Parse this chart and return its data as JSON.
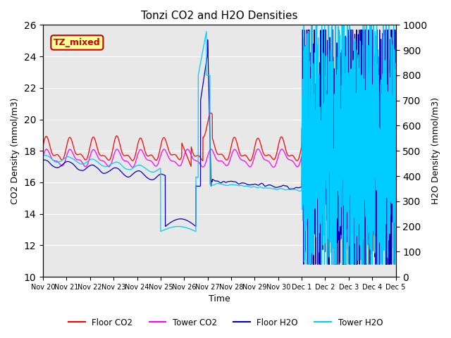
{
  "title": "Tonzi CO2 and H2O Densities",
  "xlabel": "Time",
  "ylabel_left": "CO2 Density (mmol/m3)",
  "ylabel_right": "H2O Density (mmol/m3)",
  "ylim_left": [
    10,
    26
  ],
  "ylim_right": [
    0,
    1000
  ],
  "yticks_left": [
    10,
    12,
    14,
    16,
    18,
    20,
    22,
    24,
    26
  ],
  "yticks_right": [
    0,
    100,
    200,
    300,
    400,
    500,
    600,
    700,
    800,
    900,
    1000
  ],
  "xtick_labels": [
    "Nov 20",
    "Nov 21",
    "Nov 22",
    "Nov 23",
    "Nov 24",
    "Nov 25",
    "Nov 26",
    "Nov 27",
    "Nov 28",
    "Nov 29",
    "Nov 30",
    "Dec 1",
    "Dec 2",
    "Dec 3",
    "Dec 4",
    "Dec 5"
  ],
  "colors": {
    "floor_co2": "#FF0000",
    "tower_co2": "#FF00FF",
    "floor_h2o": "#0000BB",
    "tower_h2o": "#00CCFF"
  },
  "legend_labels": [
    "Floor CO2",
    "Tower CO2",
    "Floor H2O",
    "Tower H2O"
  ],
  "annotation_text": "TZ_mixed",
  "annotation_color": "#CC0000",
  "annotation_bg": "#FFFF99",
  "background_color": "#E8E8E8",
  "n_points": 3000,
  "seed": 42
}
